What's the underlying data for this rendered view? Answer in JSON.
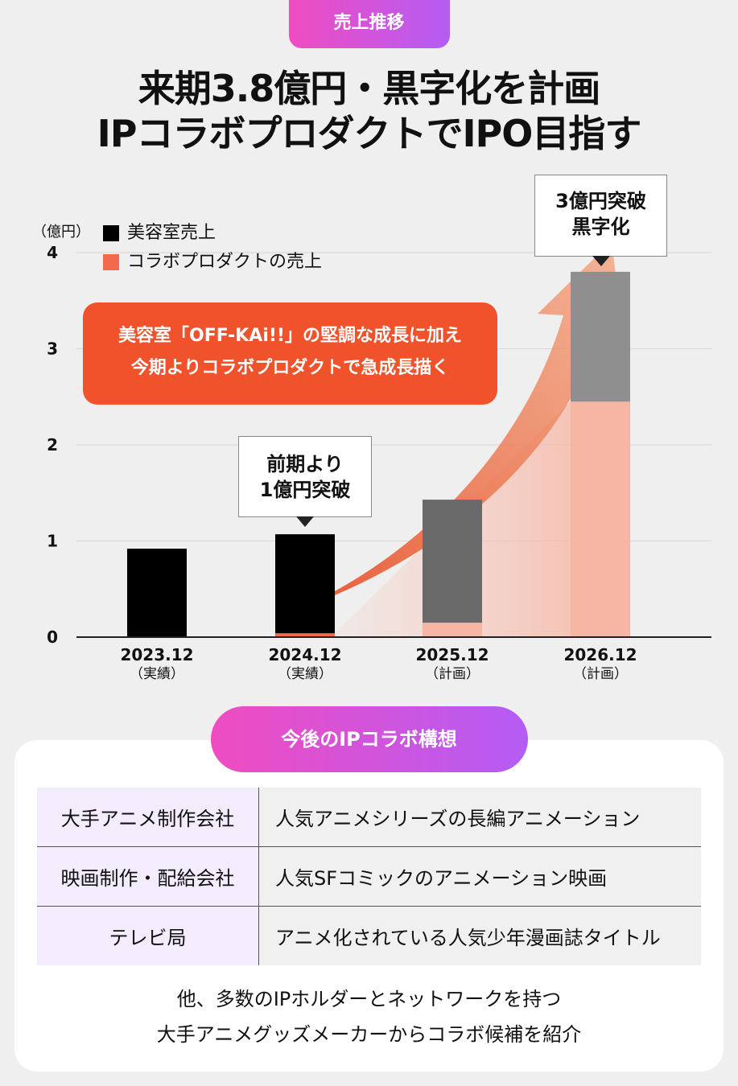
{
  "header": {
    "badge": "売上推移",
    "title_line1": "来期3.8億円・黒字化を計画",
    "title_line2": "IPコラボプロダクトでIPO目指す"
  },
  "chart_data": {
    "type": "bar",
    "stacked": true,
    "y_unit": "（億円）",
    "ylim": [
      0,
      4
    ],
    "yticks": [
      0,
      1,
      2,
      3,
      4
    ],
    "grid": true,
    "legend_position": "top-left",
    "categories": [
      "2023.12",
      "2024.12",
      "2025.12",
      "2026.12"
    ],
    "category_status": [
      "（実績）",
      "（実績）",
      "（計画）",
      "（計画）"
    ],
    "series": [
      {
        "name": "コラボプロダクトの売上",
        "color": "#f26a4b",
        "values": [
          0.0,
          0.04,
          0.15,
          2.45
        ]
      },
      {
        "name": "美容室売上",
        "color": "#000000",
        "values": [
          0.92,
          1.03,
          1.28,
          1.35
        ]
      }
    ],
    "annotations": {
      "growth_callout_line1": "美容室「OFF-KAi!!」の堅調な成長に加え",
      "growth_callout_line2": "今期よりコラボプロダクトで急成長描く",
      "bubble_2024_line1": "前期より",
      "bubble_2024_line2": "1億円突破",
      "bubble_2026_line1": "3億円突破",
      "bubble_2026_line2": "黒字化"
    }
  },
  "plan": {
    "badge": "今後のIPコラボ構想",
    "rows": [
      {
        "partner": "大手アニメ制作会社",
        "project": "人気アニメシリーズの長編アニメーション"
      },
      {
        "partner": "映画制作・配給会社",
        "project": "人気SFコミックのアニメーション映画"
      },
      {
        "partner": "テレビ局",
        "project": "アニメ化されている人気少年漫画誌タイトル"
      }
    ],
    "footer_line1": "他、多数のIPホルダーとネットワークを持つ",
    "footer_line2": "大手アニメグッズメーカーからコラボ候補を紹介"
  },
  "colors": {
    "accent_gradient_start": "#f04cc0",
    "accent_gradient_end": "#b45cf5",
    "callout": "#f0522b",
    "plan_bar": "#808080",
    "plan_collab": "#f7b6a4"
  }
}
